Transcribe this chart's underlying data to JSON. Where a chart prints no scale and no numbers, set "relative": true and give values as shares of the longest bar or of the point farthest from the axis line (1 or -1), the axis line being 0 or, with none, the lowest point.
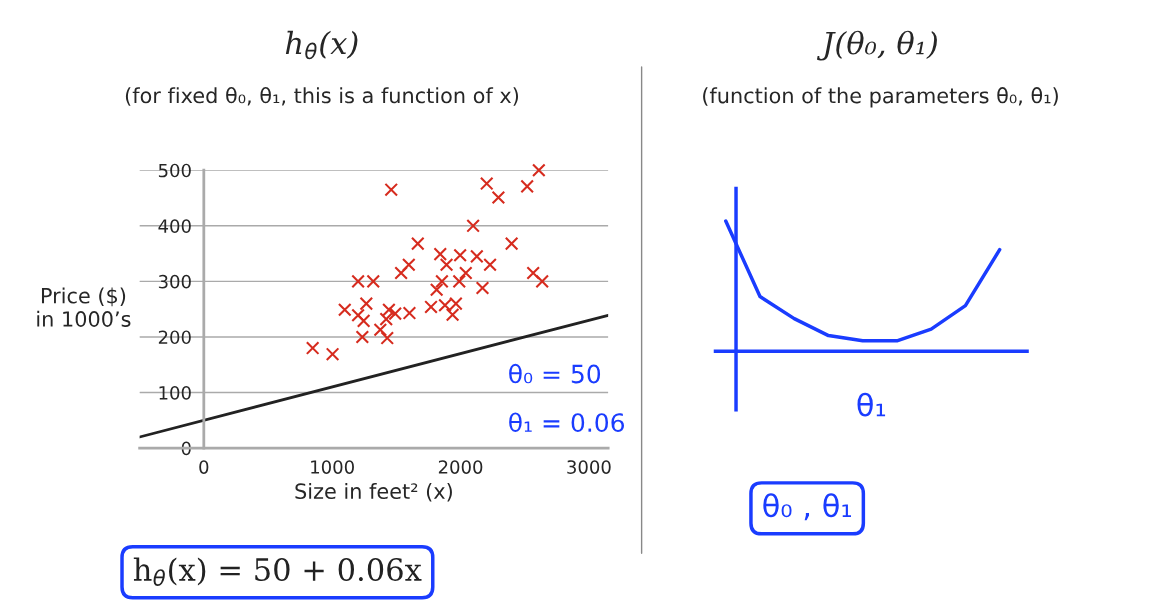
{
  "chart_data": [
    {
      "type": "scatter",
      "title": "h$_{θ}$(x)",
      "subtitle": "(for fixed θ₀, θ₁, this is a function of x)",
      "xlabel": "Size in feet² (x)",
      "ylabel": "Price ($)\nin 1000’s",
      "series": [
        {
          "type": "scatter",
          "color": "#d62b1e",
          "marker": "cross",
          "x": [
            848,
            1003,
            1202,
            1320,
            1098,
            1202,
            1266,
            1245,
            1235,
            1460,
            1375,
            1429,
            1421,
            1442,
            1491,
            1602,
            1537,
            1597,
            1667,
            1770,
            1814,
            1842,
            1855,
            1891,
            1879,
            1938,
            1964,
            1990,
            1997,
            2041,
            2098,
            2127,
            2171,
            2230,
            2204,
            2295,
            2398,
            2519,
            2610,
            2566,
            2636
          ],
          "values": [
            180,
            169,
            300,
            300,
            249,
            239,
            260,
            229,
            200,
            465,
            213,
            198,
            232,
            249,
            242,
            243,
            315,
            330,
            368,
            254,
            285,
            349,
            300,
            330,
            257,
            240,
            260,
            300,
            347,
            315,
            400,
            345,
            288,
            330,
            476,
            451,
            368,
            471,
            500,
            315,
            300
          ]
        },
        {
          "type": "line",
          "color": "#222222",
          "marker": "none",
          "x": [
            -500,
            3150
          ],
          "values": [
            20,
            239
          ]
        }
      ],
      "xlim": [
        -500,
        3150
      ],
      "xticks": [
        0,
        1000,
        2000,
        3000
      ],
      "ylim": [
        0,
        500
      ],
      "yticks": [
        0,
        100,
        200,
        300,
        400,
        500
      ],
      "grid": "y",
      "annotations": [
        "θ₀ = 50",
        "θ₁ = 0.06",
        "h$_{θ}$(x) = 50 + 0.06x"
      ]
    },
    {
      "type": "line",
      "relative": true,
      "title": "J(θ₀, θ₁)",
      "subtitle": "(function of the parameters θ₀, θ₁)",
      "xlabel": "θ₁",
      "categories": [
        null,
        null,
        null,
        null,
        null,
        null,
        null,
        null,
        null
      ],
      "series": [
        {
          "color": "#1a3cff",
          "values": [
            1.0,
            0.42,
            0.25,
            0.12,
            0.08,
            0.08,
            0.17,
            0.35,
            0.78
          ]
        }
      ],
      "annotations": [
        "θ₀ , θ₁"
      ]
    }
  ]
}
